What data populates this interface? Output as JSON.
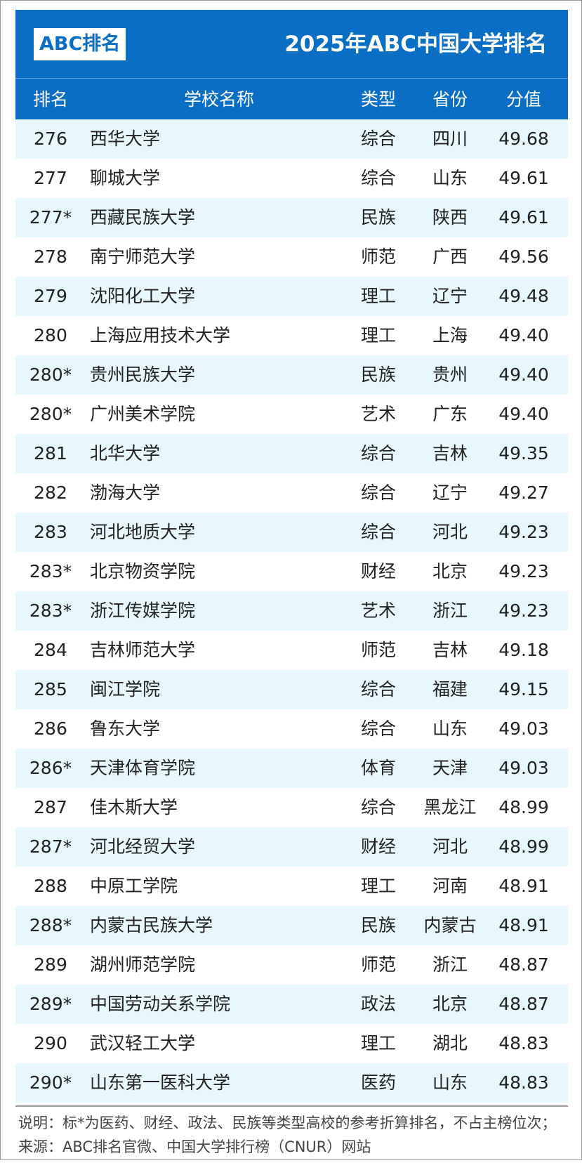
{
  "header": {
    "logo": "ABC排名",
    "title": "2025年ABC中国大学排名"
  },
  "table": {
    "columns": [
      "排名",
      "学校名称",
      "类型",
      "省份",
      "分值"
    ],
    "rows": [
      [
        "276",
        "西华大学",
        "综合",
        "四川",
        "49.68"
      ],
      [
        "277",
        "聊城大学",
        "综合",
        "山东",
        "49.61"
      ],
      [
        "277*",
        "西藏民族大学",
        "民族",
        "陕西",
        "49.61"
      ],
      [
        "278",
        "南宁师范大学",
        "师范",
        "广西",
        "49.56"
      ],
      [
        "279",
        "沈阳化工大学",
        "理工",
        "辽宁",
        "49.48"
      ],
      [
        "280",
        "上海应用技术大学",
        "理工",
        "上海",
        "49.40"
      ],
      [
        "280*",
        "贵州民族大学",
        "民族",
        "贵州",
        "49.40"
      ],
      [
        "280*",
        "广州美术学院",
        "艺术",
        "广东",
        "49.40"
      ],
      [
        "281",
        "北华大学",
        "综合",
        "吉林",
        "49.35"
      ],
      [
        "282",
        "渤海大学",
        "综合",
        "辽宁",
        "49.27"
      ],
      [
        "283",
        "河北地质大学",
        "综合",
        "河北",
        "49.23"
      ],
      [
        "283*",
        "北京物资学院",
        "财经",
        "北京",
        "49.23"
      ],
      [
        "283*",
        "浙江传媒学院",
        "艺术",
        "浙江",
        "49.23"
      ],
      [
        "284",
        "吉林师范大学",
        "师范",
        "吉林",
        "49.18"
      ],
      [
        "285",
        "闽江学院",
        "综合",
        "福建",
        "49.15"
      ],
      [
        "286",
        "鲁东大学",
        "综合",
        "山东",
        "49.03"
      ],
      [
        "286*",
        "天津体育学院",
        "体育",
        "天津",
        "49.03"
      ],
      [
        "287",
        "佳木斯大学",
        "综合",
        "黑龙江",
        "48.99"
      ],
      [
        "287*",
        "河北经贸大学",
        "财经",
        "河北",
        "48.99"
      ],
      [
        "288",
        "中原工学院",
        "理工",
        "河南",
        "48.91"
      ],
      [
        "288*",
        "内蒙古民族大学",
        "民族",
        "内蒙古",
        "48.91"
      ],
      [
        "289",
        "湖州师范学院",
        "师范",
        "浙江",
        "48.87"
      ],
      [
        "289*",
        "中国劳动关系学院",
        "政法",
        "北京",
        "48.87"
      ],
      [
        "290",
        "武汉轻工大学",
        "理工",
        "湖北",
        "48.83"
      ],
      [
        "290*",
        "山东第一医科大学",
        "医药",
        "山东",
        "48.83"
      ]
    ]
  },
  "footer": {
    "note": "说明：标*为医药、财经、政法、民族等类型高校的参考折算排名，不占主榜位次；来源：ABC排名官微、中国大学排行榜（CNUR）网站"
  }
}
